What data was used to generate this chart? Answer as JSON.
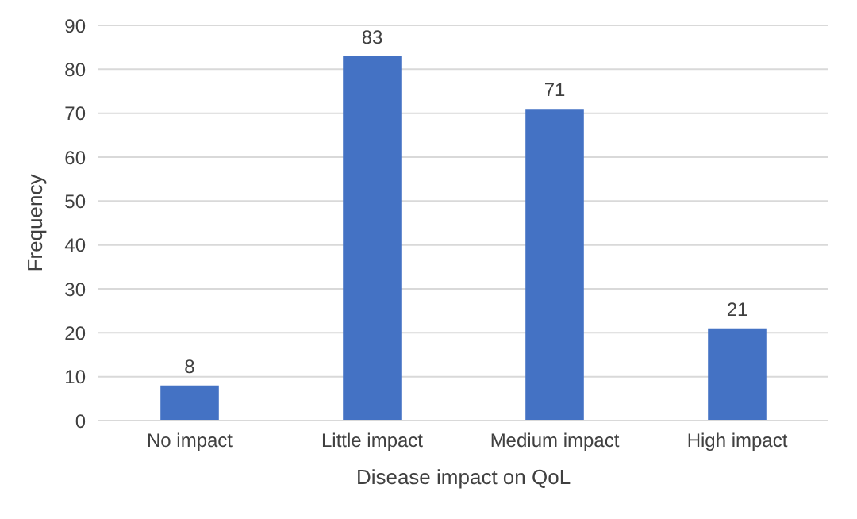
{
  "chart_data": {
    "type": "bar",
    "xlabel": "Disease impact on QoL",
    "ylabel": "Frequency",
    "categories": [
      "No impact",
      "Little impact",
      "Medium impact",
      "High impact"
    ],
    "values": [
      8,
      83,
      71,
      21
    ],
    "color": "#4472c4",
    "ylim": [
      0,
      90
    ],
    "yticks": [
      0,
      10,
      20,
      30,
      40,
      50,
      60,
      70,
      80,
      90
    ],
    "grid": "y",
    "data_labels": true
  }
}
